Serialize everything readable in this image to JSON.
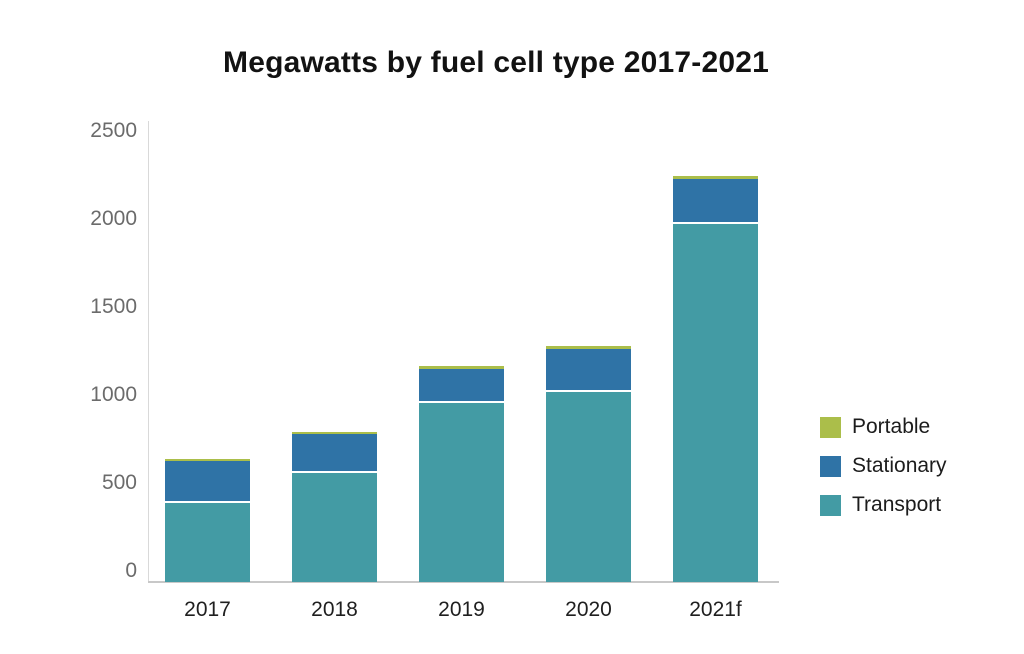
{
  "chart_data": {
    "type": "bar",
    "stacked": true,
    "title": "Megawatts by fuel cell type 2017-2021",
    "xlabel": "",
    "ylabel": "",
    "categories": [
      "2017",
      "2018",
      "2019",
      "2020",
      "2021f"
    ],
    "series": [
      {
        "name": "Portable",
        "color": "#abbe4a",
        "values": [
          15,
          15,
          15,
          15,
          15
        ]
      },
      {
        "name": "Stationary",
        "color": "#2f73a6",
        "values": [
          235,
          220,
          195,
          245,
          255
        ]
      },
      {
        "name": "Transport",
        "color": "#439ba4",
        "values": [
          450,
          620,
          1015,
          1080,
          2035
        ]
      }
    ],
    "totals": [
      700,
      855,
      1225,
      1340,
      2305
    ],
    "stack_order_bottom_to_top": [
      "Transport",
      "Stationary",
      "Portable"
    ],
    "ylim": [
      0,
      2500
    ],
    "yticks": [
      0,
      500,
      1000,
      1500,
      2000,
      2500
    ],
    "grid": false,
    "legend_position": "right"
  },
  "colors": {
    "background": "#ffffff",
    "axis_line_vertical": "#d9d9d9",
    "axis_line_baseline": "#c8c8c8",
    "y_tick_label": "#6b6b6b",
    "x_tick_label": "#1f1f1f",
    "title": "#121212",
    "legend_label": "#1c1c1c",
    "segment_separator": "#ffffff"
  }
}
